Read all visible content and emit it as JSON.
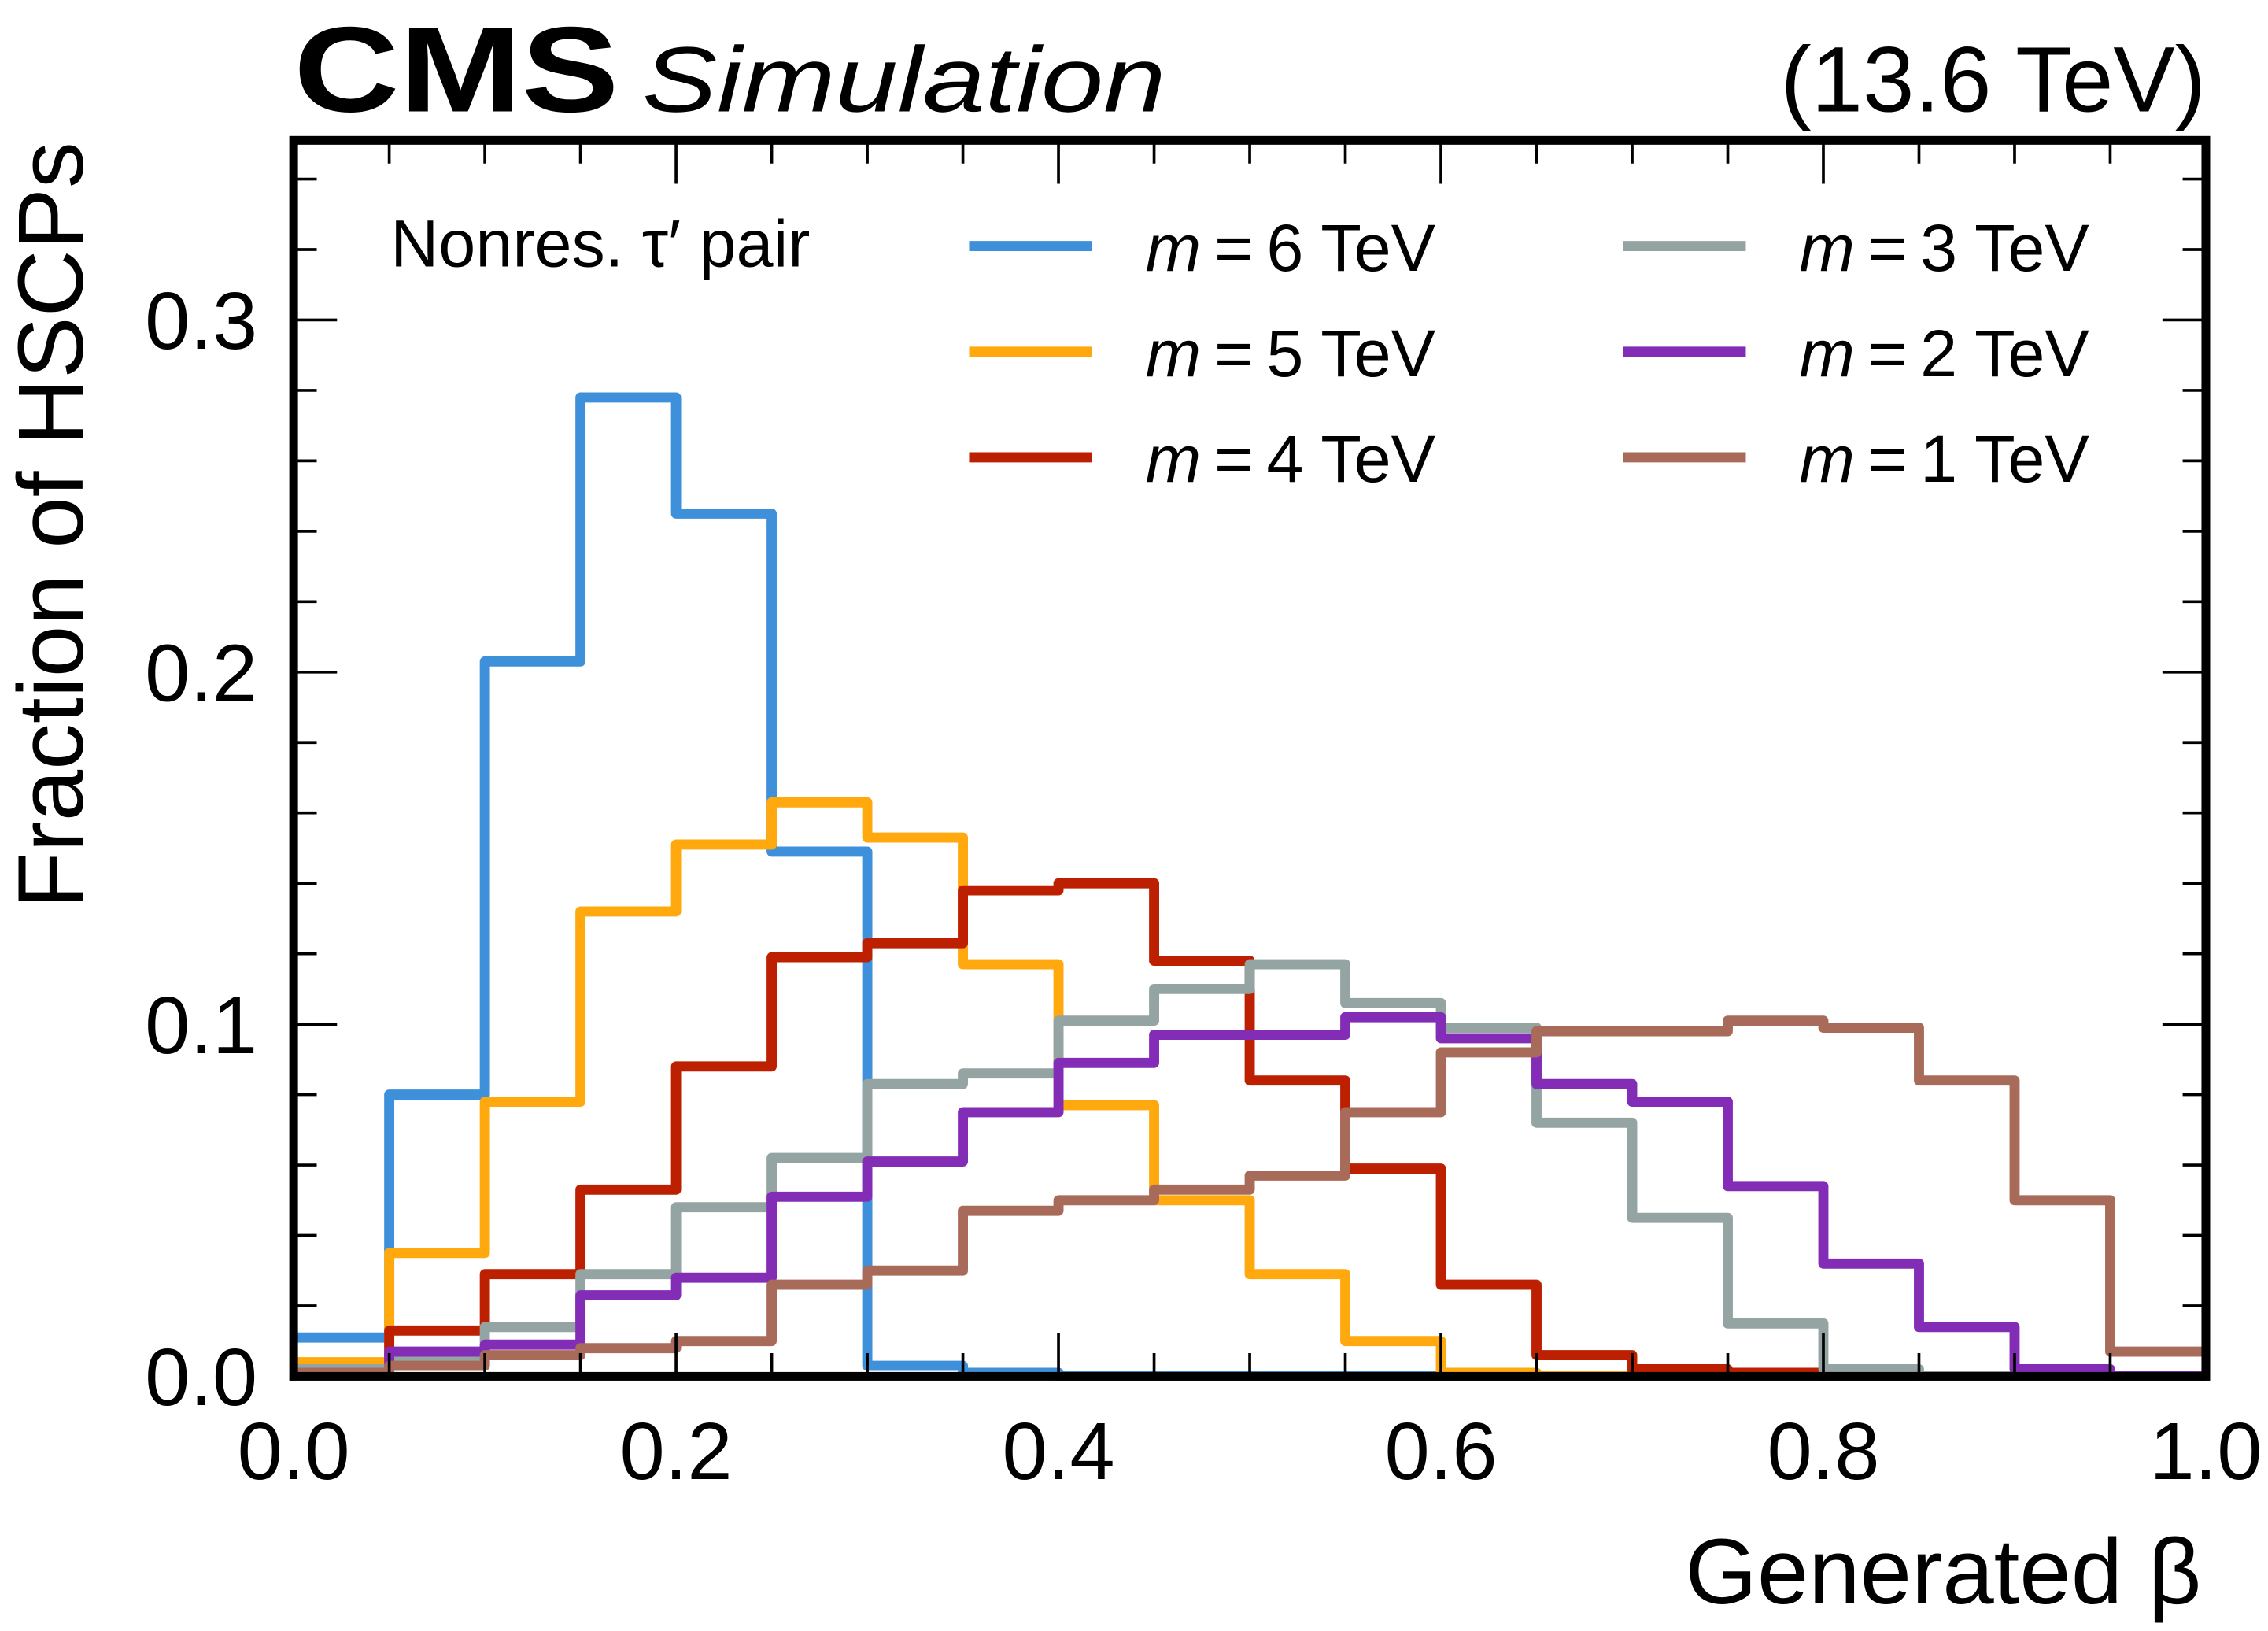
{
  "header": {
    "experiment": "CMS",
    "status": "Simulation",
    "energy": "(13.6 TeV)"
  },
  "chart_data": {
    "type": "line",
    "style": "step-histogram",
    "xlabel": "Generated β",
    "ylabel": "Fraction of HSCPs",
    "xlim": [
      0.0,
      1.0
    ],
    "ylim": [
      0.0,
      0.351
    ],
    "x_ticks": [
      "0.0",
      "0.2",
      "0.4",
      "0.6",
      "0.8",
      "1.0"
    ],
    "x_tick_values": [
      0.0,
      0.2,
      0.4,
      0.6,
      0.8,
      1.0
    ],
    "y_ticks": [
      "0.0",
      "0.1",
      "0.2",
      "0.3"
    ],
    "y_tick_values": [
      0.0,
      0.1,
      0.2,
      0.3
    ],
    "x_minor_step": 0.05,
    "y_minor_step": 0.02,
    "grid": false,
    "legend_title": "Nonres. τ′ pair",
    "legend_placement": "top",
    "bin_edges": [
      0.0,
      0.05,
      0.1,
      0.15,
      0.2,
      0.25,
      0.3,
      0.35,
      0.4,
      0.45,
      0.5,
      0.55,
      0.6,
      0.65,
      0.7,
      0.75,
      0.8,
      0.85,
      0.9,
      0.95,
      1.0
    ],
    "series": [
      {
        "name": "m = 6 TeV",
        "mass": "6",
        "color": "#3f90da",
        "values": [
          0.011,
          0.08,
          0.203,
          0.278,
          0.245,
          0.149,
          0.003,
          0.001,
          0.0,
          0.0,
          0.0,
          0.0,
          0.0,
          0.0,
          0.0,
          0.0,
          0.0,
          0.0,
          0.0,
          0.0
        ]
      },
      {
        "name": "m = 5 TeV",
        "mass": "5",
        "color": "#ffa90e",
        "values": [
          0.004,
          0.035,
          0.078,
          0.132,
          0.151,
          0.163,
          0.153,
          0.117,
          0.077,
          0.05,
          0.029,
          0.01,
          0.001,
          0.0,
          0.0,
          0.0,
          0.0,
          0.0,
          0.0,
          0.0
        ]
      },
      {
        "name": "m = 4 TeV",
        "mass": "4",
        "color": "#bd1f01",
        "values": [
          0.002,
          0.013,
          0.029,
          0.053,
          0.088,
          0.119,
          0.123,
          0.138,
          0.14,
          0.118,
          0.084,
          0.059,
          0.026,
          0.006,
          0.002,
          0.001,
          0.0,
          0.0,
          0.0,
          0.0
        ]
      },
      {
        "name": "m = 3 TeV",
        "mass": "3",
        "color": "#94a4a2",
        "values": [
          0.002,
          0.005,
          0.014,
          0.029,
          0.048,
          0.062,
          0.083,
          0.086,
          0.101,
          0.11,
          0.117,
          0.106,
          0.099,
          0.072,
          0.045,
          0.015,
          0.002,
          0.0,
          0.0,
          0.0
        ]
      },
      {
        "name": "m = 2 TeV",
        "mass": "2",
        "color": "#832db6",
        "values": [
          0.001,
          0.007,
          0.009,
          0.023,
          0.028,
          0.051,
          0.061,
          0.075,
          0.089,
          0.097,
          0.097,
          0.102,
          0.096,
          0.083,
          0.078,
          0.054,
          0.032,
          0.014,
          0.002,
          0.0
        ]
      },
      {
        "name": "m = 1 TeV",
        "mass": "1",
        "color": "#a96b59",
        "values": [
          0.001,
          0.003,
          0.006,
          0.008,
          0.01,
          0.026,
          0.03,
          0.047,
          0.05,
          0.053,
          0.057,
          0.075,
          0.092,
          0.098,
          0.098,
          0.101,
          0.099,
          0.084,
          0.05,
          0.007
        ]
      }
    ]
  }
}
